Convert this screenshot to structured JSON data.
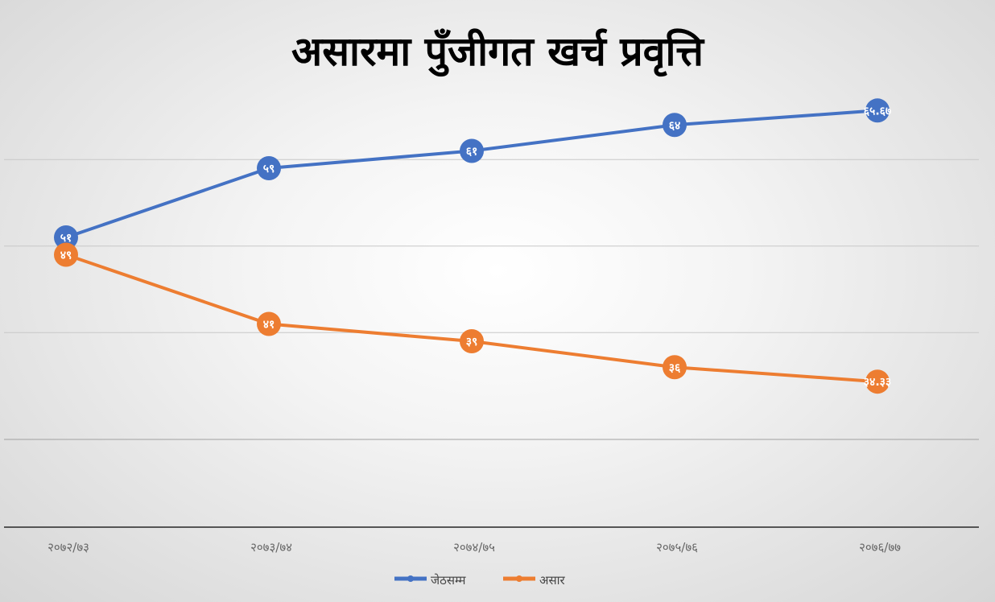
{
  "chart_data": {
    "type": "line",
    "title": "असारमा पुँजीगत खर्च प्रवृत्ति",
    "categories": [
      "२०७२/७३",
      "२०७३/७४",
      "२०७४/७५",
      "२०७५/७६",
      "२०७६/७७"
    ],
    "series": [
      {
        "name": "जेठसम्म",
        "color": "#4472c4",
        "values": [
          51,
          59,
          61,
          64,
          65.67
        ],
        "labels": [
          "५१",
          "५९",
          "६१",
          "६४",
          "६५.६७"
        ]
      },
      {
        "name": "असार",
        "color": "#ed7d31",
        "values": [
          49,
          41,
          39,
          36,
          34.33
        ],
        "labels": [
          "४९",
          "४१",
          "३९",
          "३६",
          "३४.३३"
        ]
      }
    ],
    "gridlines": [
      60,
      50,
      40
    ],
    "grid": true,
    "legend": "bottom"
  }
}
